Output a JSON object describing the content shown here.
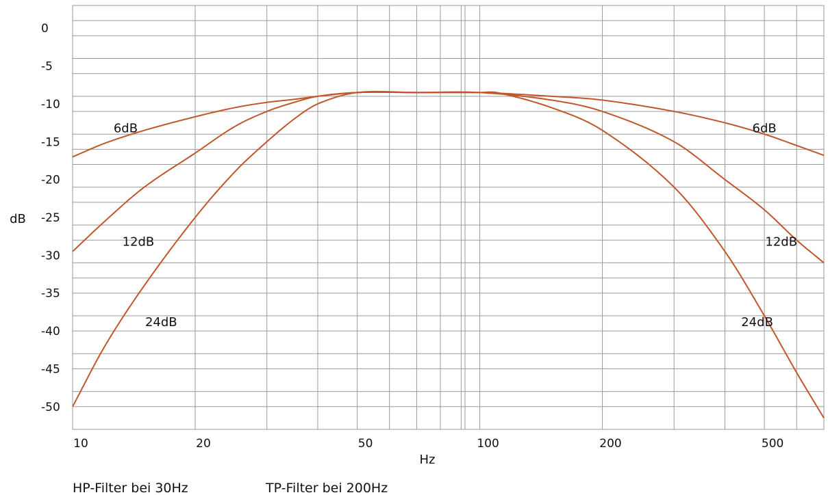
{
  "chart_data": {
    "type": "line",
    "title": "",
    "xlabel": "Hz",
    "ylabel": "dB",
    "x_scale": "log",
    "xlim": [
      10,
      700
    ],
    "ylim": [
      -53,
      3
    ],
    "grid": true,
    "x_ticks": [
      10,
      20,
      50,
      100,
      200,
      500
    ],
    "x_tick_labels": [
      "10",
      "20",
      "50",
      "100",
      "200",
      "500"
    ],
    "x_grid": [
      20,
      30,
      40,
      50,
      60,
      70,
      80,
      90,
      92,
      100,
      200,
      300,
      400,
      500,
      600
    ],
    "y_ticks": [
      0,
      -5,
      -10,
      -15,
      -20,
      -25,
      -30,
      -35,
      -40,
      -45,
      -50
    ],
    "y_tick_labels": [
      "0",
      "-5",
      "-10",
      "-15",
      "-20",
      "-25",
      "-30",
      "-35",
      "-40",
      "-45",
      "-50"
    ],
    "y_grid": [
      3,
      1,
      -1,
      -4,
      -6,
      -9,
      -11,
      -14,
      -16,
      -18,
      -21,
      -23,
      -26,
      -28,
      -31,
      -33,
      -35,
      -38,
      -40,
      -43,
      -45,
      -48,
      -50,
      -53
    ],
    "series_color": "#c0562a",
    "series": [
      {
        "x": [
          10,
          12,
          15,
          20,
          25,
          30,
          35,
          40,
          50,
          70,
          100,
          150,
          200,
          300,
          400,
          500,
          600,
          700
        ],
        "y": [
          -17.0,
          -15.2,
          -13.5,
          -11.7,
          -10.5,
          -9.8,
          -9.4,
          -9.0,
          -8.5,
          -8.5,
          -8.5,
          -9.0,
          -9.5,
          -11.0,
          -12.5,
          -14.0,
          -15.5,
          -16.8
        ]
      },
      {
        "x": [
          10,
          12,
          15,
          20,
          25,
          30,
          35,
          40,
          50,
          70,
          100,
          150,
          200,
          300,
          400,
          500,
          600,
          700
        ],
        "y": [
          -29.5,
          -25.5,
          -21.0,
          -16.5,
          -13.0,
          -11.0,
          -9.8,
          -9.0,
          -8.5,
          -8.5,
          -8.5,
          -9.5,
          -11.0,
          -15.0,
          -20.0,
          -24.0,
          -28.0,
          -31.0
        ]
      },
      {
        "x": [
          10,
          12,
          15,
          20,
          25,
          30,
          35,
          40,
          50,
          70,
          100,
          110,
          150,
          200,
          300,
          400,
          500,
          600,
          700
        ],
        "y": [
          -50.0,
          -42.0,
          -34.0,
          -25.0,
          -19.0,
          -15.0,
          -12.0,
          -10.0,
          -8.5,
          -8.5,
          -8.5,
          -8.5,
          -10.5,
          -13.5,
          -21.0,
          -29.5,
          -38.0,
          -45.5,
          -51.5
        ]
      }
    ],
    "curve_labels": [
      {
        "text": "6dB",
        "x": 13.5,
        "y": -13.2
      },
      {
        "text": "12dB",
        "x": 14.5,
        "y": -28.2
      },
      {
        "text": "24dB",
        "x": 16.5,
        "y": -38.8
      },
      {
        "text": "6dB",
        "x": 500,
        "y": -13.2
      },
      {
        "text": "12dB",
        "x": 550,
        "y": -28.2
      },
      {
        "text": "24dB",
        "x": 480,
        "y": -38.8
      }
    ]
  },
  "notes": {
    "hp": "HP-Filter bei 30Hz",
    "tp": "TP-Filter bei 200Hz"
  }
}
